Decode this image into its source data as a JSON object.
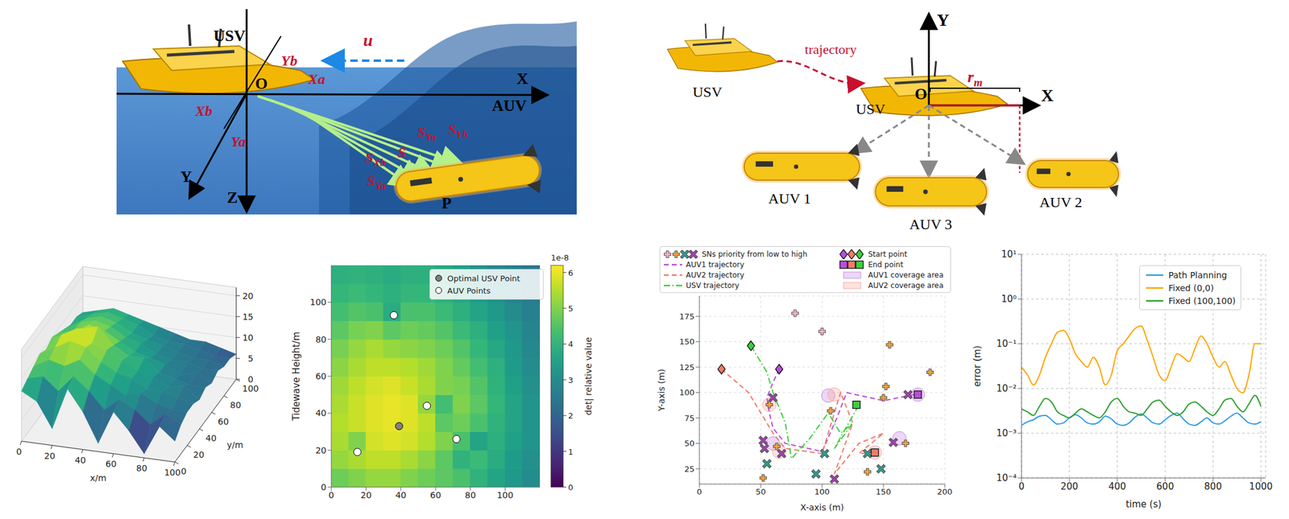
{
  "top_left_diagram": {
    "labels": {
      "usv": "USV",
      "origin": "O",
      "x": "X",
      "y": "Y",
      "z": "Z",
      "yb": "Yb",
      "xa": "Xa",
      "xb": "Xb",
      "ya": "Ya",
      "current": "u",
      "auv": "AUV",
      "point": "P"
    },
    "vectors": [
      {
        "text": "S",
        "sub": "Yb"
      },
      {
        "text": "S",
        "sub": "Ya"
      },
      {
        "text": "S"
      },
      {
        "text": "S",
        "sub": "Xb"
      },
      {
        "text": "S",
        "sub": "Ya"
      }
    ]
  },
  "top_right_diagram": {
    "labels": {
      "usv_start": "USV",
      "trajectory": "trajectory",
      "usv": "USV",
      "origin": "O",
      "y": "Y",
      "x": "X"
    },
    "radius": {
      "text": "r",
      "sub": "m"
    },
    "auvs": [
      "AUV 1",
      "AUV 3",
      "AUV 2"
    ]
  },
  "chart_data": [
    {
      "type": "surface3d",
      "xlabel": "x/m",
      "ylabel": "y/m",
      "xlim": [
        0,
        100
      ],
      "ylim": [
        0,
        100
      ],
      "zlim": [
        0,
        22
      ],
      "xticks": [
        0,
        20,
        40,
        60,
        80,
        100
      ],
      "yticks": [
        0,
        20,
        40,
        60,
        80,
        100
      ],
      "zticks": [
        0,
        5,
        10,
        15,
        20
      ],
      "x": [
        0,
        10,
        20,
        30,
        40,
        50,
        60,
        70,
        80,
        90,
        100
      ],
      "y": [
        0,
        10,
        20,
        30,
        40,
        50,
        60,
        70,
        80,
        90,
        100
      ],
      "z": [
        [
          12,
          10,
          4,
          14,
          9,
          2,
          10,
          6,
          1,
          8,
          5
        ],
        [
          13,
          14,
          11,
          15,
          12,
          8,
          11,
          9,
          6,
          9,
          7
        ],
        [
          14,
          16,
          15,
          17,
          14,
          12,
          10,
          11,
          9,
          8,
          8
        ],
        [
          15,
          17,
          19,
          18,
          15,
          13,
          12,
          10,
          10,
          9,
          8
        ],
        [
          14,
          18,
          20,
          17,
          16,
          14,
          12,
          11,
          9,
          10,
          7
        ],
        [
          15,
          16,
          18,
          19,
          15,
          13,
          13,
          10,
          9,
          8,
          8
        ],
        [
          14,
          15,
          17,
          16,
          14,
          12,
          11,
          10,
          8,
          9,
          7
        ],
        [
          13,
          15,
          16,
          15,
          13,
          12,
          10,
          9,
          9,
          8,
          8
        ],
        [
          12,
          14,
          15,
          14,
          12,
          11,
          10,
          9,
          8,
          8,
          7
        ],
        [
          12,
          13,
          14,
          13,
          12,
          10,
          9,
          9,
          8,
          7,
          7
        ],
        [
          11,
          12,
          13,
          12,
          11,
          10,
          9,
          8,
          8,
          7,
          6
        ]
      ]
    },
    {
      "type": "heatmap",
      "ylabel": "Tidewave Height/m",
      "xlim": [
        0,
        120
      ],
      "ylim": [
        0,
        120
      ],
      "xticks": [
        0,
        20,
        40,
        60,
        80,
        100
      ],
      "yticks": [
        0,
        20,
        40,
        60,
        80,
        100
      ],
      "x_edges": [
        0,
        10,
        20,
        30,
        40,
        50,
        60,
        70,
        80,
        90,
        100,
        110,
        120
      ],
      "y_edges": [
        0,
        10,
        20,
        30,
        40,
        50,
        60,
        70,
        80,
        90,
        100,
        110,
        120
      ],
      "cells": [
        [
          4.8,
          5.0,
          5.2,
          5.2,
          5.0,
          4.8,
          4.6,
          4.4,
          4.0,
          3.6,
          3.3,
          3.0
        ],
        [
          5.2,
          5.4,
          5.6,
          5.6,
          5.4,
          5.1,
          4.6,
          4.0,
          4.2,
          3.8,
          3.4,
          3.1
        ],
        [
          5.4,
          5.0,
          5.8,
          5.9,
          5.8,
          5.5,
          5.0,
          4.4,
          3.6,
          3.9,
          3.5,
          3.2
        ],
        [
          5.5,
          5.7,
          5.9,
          6.0,
          5.9,
          5.6,
          4.6,
          4.8,
          4.4,
          4.0,
          3.6,
          3.2
        ],
        [
          5.4,
          5.7,
          5.9,
          6.0,
          5.9,
          5.2,
          4.3,
          5.0,
          4.6,
          4.1,
          3.6,
          3.2
        ],
        [
          5.3,
          5.6,
          5.8,
          5.9,
          5.7,
          5.4,
          5.0,
          4.9,
          4.5,
          4.0,
          3.5,
          3.1
        ],
        [
          5.1,
          5.4,
          5.6,
          5.6,
          5.5,
          5.3,
          5.0,
          4.7,
          4.3,
          3.9,
          3.4,
          3.0
        ],
        [
          4.9,
          5.2,
          5.4,
          5.2,
          5.1,
          5.0,
          4.8,
          4.5,
          4.1,
          3.7,
          3.3,
          2.9
        ],
        [
          4.6,
          4.9,
          5.0,
          4.6,
          4.8,
          4.7,
          4.5,
          4.2,
          3.9,
          3.5,
          3.2,
          2.8
        ],
        [
          4.3,
          4.5,
          4.4,
          3.8,
          4.4,
          4.4,
          4.2,
          3.9,
          3.6,
          3.3,
          3.0,
          2.7
        ],
        [
          4.1,
          4.2,
          4.1,
          3.9,
          4.1,
          4.1,
          3.9,
          3.7,
          3.4,
          3.1,
          2.8,
          2.6
        ],
        [
          3.9,
          4.0,
          3.9,
          3.8,
          3.9,
          3.9,
          3.7,
          3.5,
          3.2,
          2.9,
          2.7,
          2.5
        ]
      ],
      "colorbar": {
        "label": "det| relative value",
        "scale_label": "1e-8",
        "range": [
          0,
          6.2
        ],
        "ticks": [
          0,
          1,
          2,
          3,
          4,
          5,
          6
        ]
      },
      "series": [
        {
          "name": "Optimal USV Point",
          "color": "#808080",
          "marker": "circle",
          "x": [
            39
          ],
          "y": [
            33
          ]
        },
        {
          "name": "AUV Points",
          "color": "#ffffff",
          "marker": "circle",
          "x": [
            36,
            55,
            72,
            15
          ],
          "y": [
            93,
            44,
            26,
            19
          ]
        }
      ],
      "legend": "upper right"
    },
    {
      "type": "trajectory",
      "xlabel": "X-axis (m)",
      "ylabel": "Y-axis (m)",
      "xlim": [
        0,
        200
      ],
      "ylim": [
        10,
        195
      ],
      "xticks": [
        0,
        50,
        100,
        150,
        200
      ],
      "yticks": [
        25,
        50,
        75,
        100,
        125,
        150,
        175
      ],
      "legend": "top",
      "sensor_nodes": {
        "name": "SNs priority from low to high",
        "levels": [
          {
            "color": "#f6b3c6",
            "marker": "plus"
          },
          {
            "color": "#f4a03c",
            "marker": "plus"
          },
          {
            "color": "#2a9d8f",
            "marker": "x"
          },
          {
            "color": "#a23fb0",
            "marker": "x"
          }
        ],
        "x": [
          52,
          57,
          155,
          152,
          150,
          168,
          137,
          107,
          63,
          78,
          100,
          188,
          95,
          148,
          137,
          102,
          55,
          52,
          170,
          158,
          53,
          110,
          67,
          60
        ],
        "y": [
          16,
          88,
          147,
          106,
          95,
          50,
          22,
          82,
          47,
          178,
          160,
          120,
          20,
          25,
          40,
          40,
          30,
          53,
          98,
          51,
          45,
          15,
          40,
          95
        ],
        "priority": [
          1,
          1,
          1,
          1,
          1,
          1,
          1,
          1,
          1,
          0,
          0,
          1,
          2,
          2,
          2,
          2,
          2,
          3,
          3,
          3,
          3,
          3,
          3,
          3
        ]
      },
      "series": [
        {
          "name": "AUV1 trajectory",
          "color": "#b74fd6",
          "line_style": "dashed",
          "x": [
            65,
            60,
            55,
            57,
            60,
            70,
            100,
            112,
            120,
            150,
            175,
            178
          ],
          "y": [
            123,
            110,
            95,
            80,
            65,
            50,
            42,
            75,
            100,
            92,
            98,
            98
          ]
        },
        {
          "name": "AUV2 trajectory",
          "color": "#f07b6b",
          "line_style": "dashed",
          "x": [
            18,
            40,
            60,
            70,
            100,
            115,
            125,
            110,
            130,
            150,
            130,
            143
          ],
          "y": [
            123,
            100,
            60,
            45,
            40,
            100,
            70,
            20,
            50,
            60,
            40,
            41
          ]
        },
        {
          "name": "USV trajectory",
          "color": "#3ccf3c",
          "line_style": "dashdot",
          "x": [
            42,
            55,
            60,
            70,
            75,
            90,
            105,
            115,
            125,
            110,
            130,
            128
          ],
          "y": [
            146,
            120,
            100,
            70,
            35,
            55,
            80,
            60,
            70,
            45,
            88,
            88
          ]
        }
      ],
      "start_points": {
        "name": "Start point",
        "marker": "diamond",
        "colors": [
          "#b74fd6",
          "#f07b6b",
          "#3ccf3c"
        ],
        "x": [
          65,
          18,
          42
        ],
        "y": [
          123,
          123,
          146
        ]
      },
      "end_points": {
        "name": "End point",
        "marker": "square",
        "colors": [
          "#b74fd6",
          "#f07b6b",
          "#3ccf3c"
        ],
        "x": [
          178,
          143,
          128
        ],
        "y": [
          98,
          41,
          88
        ]
      },
      "coverage": [
        {
          "name": "AUV1 coverage area",
          "color": "#c98ee2",
          "x": [
            60,
            178,
            163,
            105
          ],
          "y": [
            50,
            98,
            55,
            97
          ]
        },
        {
          "name": "AUV2 coverage area",
          "color": "#f5aca4",
          "x": [
            65,
            110,
            57,
            143
          ],
          "y": [
            42,
            98,
            88,
            41
          ]
        }
      ]
    },
    {
      "type": "line",
      "xlabel": "time (s)",
      "ylabel": "error (m)",
      "log": "y",
      "grid": true,
      "legend": "upper right",
      "xlim": [
        0,
        1020
      ],
      "ylim": [
        0.0001,
        10
      ],
      "xticks": [
        0,
        200,
        400,
        600,
        800,
        1000
      ],
      "yticks": [
        {
          "value": 0.0001,
          "label": "10⁻⁴"
        },
        {
          "value": 0.001,
          "label": "10⁻³"
        },
        {
          "value": 0.01,
          "label": "10⁻²"
        },
        {
          "value": 0.1,
          "label": "10⁻¹"
        },
        {
          "value": 1,
          "label": "10⁰"
        },
        {
          "value": 10,
          "label": "10¹"
        }
      ],
      "x": [
        0,
        25,
        50,
        75,
        100,
        125,
        150,
        175,
        200,
        225,
        250,
        275,
        300,
        325,
        350,
        375,
        400,
        425,
        450,
        475,
        500,
        525,
        550,
        575,
        600,
        625,
        650,
        675,
        700,
        725,
        750,
        775,
        800,
        825,
        850,
        875,
        900,
        925,
        950,
        975,
        1000
      ],
      "series": [
        {
          "name": "Path Planning",
          "color": "#2e9be6",
          "values": [
            0.0015,
            0.0018,
            0.002,
            0.0024,
            0.0025,
            0.002,
            0.0016,
            0.0017,
            0.0022,
            0.0026,
            0.0022,
            0.0017,
            0.0016,
            0.0018,
            0.0024,
            0.0021,
            0.0016,
            0.0015,
            0.0017,
            0.0023,
            0.0027,
            0.0022,
            0.0017,
            0.0016,
            0.002,
            0.0025,
            0.0028,
            0.0021,
            0.0016,
            0.0015,
            0.0018,
            0.0022,
            0.0017,
            0.0016,
            0.0019,
            0.0024,
            0.0028,
            0.0022,
            0.0017,
            0.0016,
            0.0018
          ]
        },
        {
          "name": "Fixed (0,0)",
          "color": "#ffa500",
          "values": [
            0.03,
            0.02,
            0.012,
            0.02,
            0.05,
            0.1,
            0.18,
            0.2,
            0.13,
            0.06,
            0.04,
            0.03,
            0.05,
            0.03,
            0.012,
            0.02,
            0.07,
            0.1,
            0.15,
            0.22,
            0.25,
            0.12,
            0.05,
            0.02,
            0.015,
            0.03,
            0.06,
            0.05,
            0.04,
            0.08,
            0.15,
            0.1,
            0.05,
            0.03,
            0.04,
            0.02,
            0.01,
            0.008,
            0.02,
            0.1,
            0.1
          ]
        },
        {
          "name": "Fixed (100,100)",
          "color": "#2ca02c",
          "values": [
            0.0035,
            0.003,
            0.0025,
            0.004,
            0.006,
            0.005,
            0.003,
            0.0025,
            0.0022,
            0.0028,
            0.0035,
            0.003,
            0.0025,
            0.0022,
            0.003,
            0.005,
            0.006,
            0.004,
            0.003,
            0.0028,
            0.0025,
            0.0035,
            0.005,
            0.0055,
            0.004,
            0.003,
            0.0025,
            0.003,
            0.0045,
            0.005,
            0.004,
            0.003,
            0.0025,
            0.0035,
            0.0055,
            0.006,
            0.004,
            0.003,
            0.0045,
            0.007,
            0.004
          ]
        }
      ]
    }
  ]
}
